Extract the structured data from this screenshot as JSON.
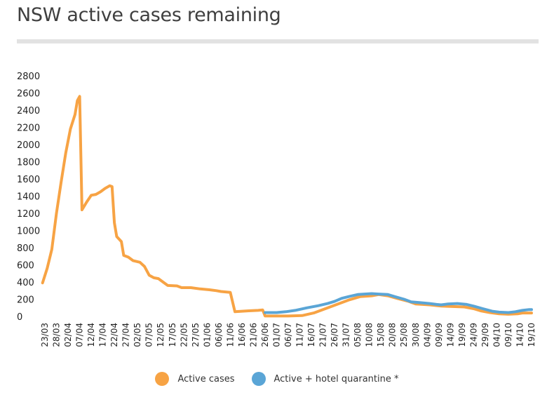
{
  "title": "NSW active cases remaining",
  "colors": {
    "active": "#f7a344",
    "hotel": "#5aa5d6",
    "rule": "#e2e2e2"
  },
  "chart_data": {
    "type": "line",
    "title": "NSW active cases remaining",
    "xlabel": "",
    "ylabel": "",
    "ylim": [
      0,
      2800
    ],
    "yticks": [
      "0",
      "200",
      "400",
      "600",
      "800",
      "1000",
      "1200",
      "1400",
      "1600",
      "1800",
      "2000",
      "2200",
      "2400",
      "2600",
      "2800"
    ],
    "x_tick_labels": [
      "23/03",
      "28/03",
      "02/04",
      "07/04",
      "12/04",
      "17/04",
      "22/04",
      "27/04",
      "02/05",
      "07/05",
      "12/05",
      "17/05",
      "22/05",
      "27/05",
      "01/06",
      "06/06",
      "11/06",
      "16/06",
      "21/06",
      "26/06",
      "01/07",
      "06/07",
      "11/07",
      "16/07",
      "21/07",
      "26/07",
      "31/07",
      "05/08",
      "10/08",
      "15/08",
      "20/08",
      "25/08",
      "30/08",
      "04/09",
      "09/09",
      "14/09",
      "19/09",
      "24/09",
      "29/09",
      "04/10",
      "09/10",
      "14/10",
      "19/10"
    ],
    "x_start": "23/03",
    "x_end": "19/10",
    "grid": false,
    "legend_position": "bottom",
    "series": [
      {
        "name": "Active cases",
        "color": "#f7a344",
        "points": [
          [
            "22/03",
            390
          ],
          [
            "24/03",
            560
          ],
          [
            "26/03",
            780
          ],
          [
            "28/03",
            1200
          ],
          [
            "30/03",
            1560
          ],
          [
            "01/04",
            1900
          ],
          [
            "03/04",
            2180
          ],
          [
            "05/04",
            2350
          ],
          [
            "06/04",
            2510
          ],
          [
            "07/04",
            2560
          ],
          [
            "08/04",
            1240
          ],
          [
            "10/04",
            1330
          ],
          [
            "12/04",
            1410
          ],
          [
            "14/04",
            1420
          ],
          [
            "16/04",
            1450
          ],
          [
            "18/04",
            1490
          ],
          [
            "20/04",
            1520
          ],
          [
            "21/04",
            1510
          ],
          [
            "22/04",
            1090
          ],
          [
            "23/04",
            930
          ],
          [
            "25/04",
            870
          ],
          [
            "26/04",
            710
          ],
          [
            "28/04",
            690
          ],
          [
            "30/04",
            650
          ],
          [
            "03/05",
            630
          ],
          [
            "05/05",
            580
          ],
          [
            "07/05",
            480
          ],
          [
            "09/05",
            450
          ],
          [
            "11/05",
            440
          ],
          [
            "13/05",
            400
          ],
          [
            "15/05",
            360
          ],
          [
            "19/05",
            355
          ],
          [
            "21/05",
            335
          ],
          [
            "25/05",
            335
          ],
          [
            "29/05",
            320
          ],
          [
            "02/06",
            310
          ],
          [
            "05/06",
            300
          ],
          [
            "07/06",
            290
          ],
          [
            "11/06",
            280
          ],
          [
            "13/06",
            55
          ],
          [
            "16/06",
            60
          ],
          [
            "19/06",
            65
          ],
          [
            "23/06",
            70
          ],
          [
            "25/06",
            75
          ],
          [
            "26/06",
            5
          ],
          [
            "06/07",
            5
          ],
          [
            "12/07",
            10
          ],
          [
            "17/07",
            40
          ],
          [
            "22/07",
            90
          ],
          [
            "27/07",
            140
          ],
          [
            "01/08",
            190
          ],
          [
            "06/08",
            230
          ],
          [
            "11/08",
            240
          ],
          [
            "14/08",
            255
          ],
          [
            "18/08",
            240
          ],
          [
            "22/08",
            210
          ],
          [
            "27/08",
            175
          ],
          [
            "30/08",
            145
          ],
          [
            "05/09",
            135
          ],
          [
            "10/09",
            120
          ],
          [
            "15/09",
            115
          ],
          [
            "20/09",
            110
          ],
          [
            "24/09",
            90
          ],
          [
            "27/09",
            65
          ],
          [
            "01/10",
            45
          ],
          [
            "05/10",
            30
          ],
          [
            "09/10",
            25
          ],
          [
            "13/10",
            30
          ],
          [
            "15/10",
            40
          ],
          [
            "19/10",
            40
          ]
        ]
      },
      {
        "name": "Active + hotel quarantine *",
        "color": "#5aa5d6",
        "points": [
          [
            "26/06",
            45
          ],
          [
            "01/07",
            45
          ],
          [
            "05/07",
            55
          ],
          [
            "09/07",
            70
          ],
          [
            "14/07",
            100
          ],
          [
            "19/07",
            125
          ],
          [
            "23/07",
            150
          ],
          [
            "26/07",
            175
          ],
          [
            "29/07",
            210
          ],
          [
            "01/08",
            230
          ],
          [
            "05/08",
            255
          ],
          [
            "08/08",
            260
          ],
          [
            "11/08",
            265
          ],
          [
            "14/08",
            260
          ],
          [
            "18/08",
            255
          ],
          [
            "21/08",
            230
          ],
          [
            "25/08",
            200
          ],
          [
            "28/08",
            170
          ],
          [
            "01/09",
            160
          ],
          [
            "05/09",
            150
          ],
          [
            "08/09",
            140
          ],
          [
            "10/09",
            135
          ],
          [
            "13/09",
            145
          ],
          [
            "17/09",
            150
          ],
          [
            "21/09",
            140
          ],
          [
            "24/09",
            120
          ],
          [
            "28/09",
            90
          ],
          [
            "02/10",
            60
          ],
          [
            "05/10",
            50
          ],
          [
            "09/10",
            45
          ],
          [
            "12/10",
            55
          ],
          [
            "15/10",
            70
          ],
          [
            "18/10",
            80
          ],
          [
            "19/10",
            80
          ]
        ]
      }
    ]
  }
}
